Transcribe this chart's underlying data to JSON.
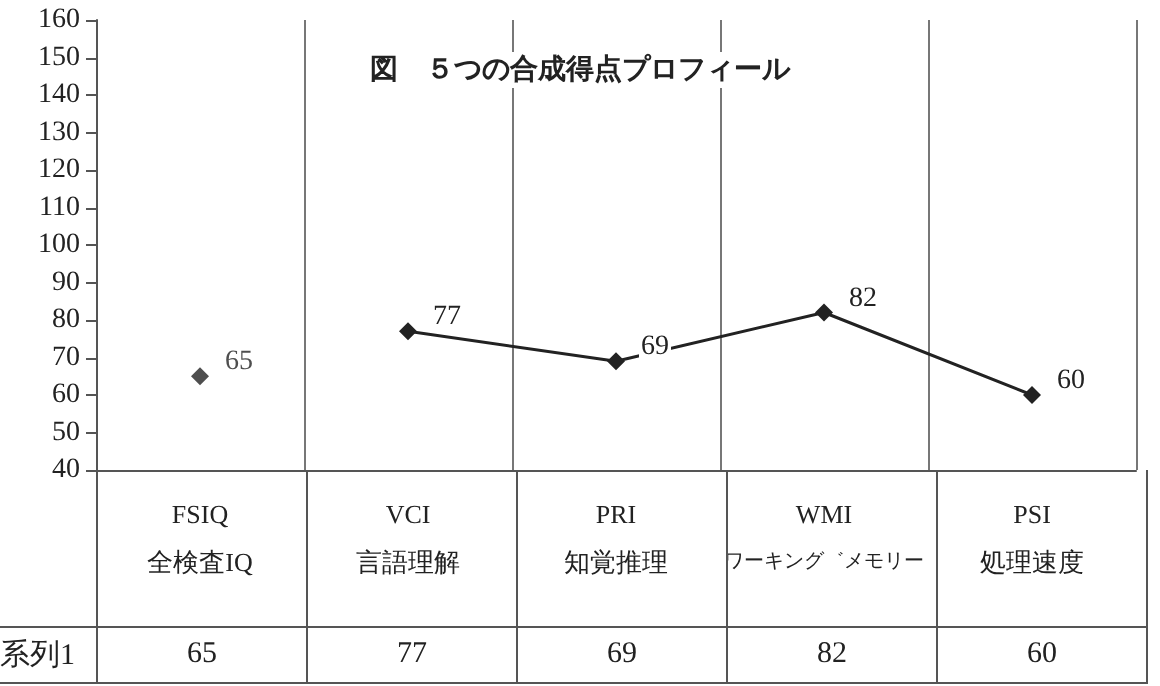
{
  "chart_data": {
    "type": "line",
    "title": "図　５つの合成得点プロフィール",
    "categories": [
      "FSIQ\n全検査IQ",
      "VCI\n言語理解",
      "PRI\n知覚推理",
      "WMI\nワーキング゛メモリー",
      "PSI\n処理速度"
    ],
    "series": [
      {
        "type": "scatter",
        "color": "#222222",
        "values": [
          65,
          null,
          null,
          null,
          null
        ],
        "value_labels": [
          "65",
          null,
          null,
          null,
          null
        ]
      },
      {
        "name": "系列1",
        "color": "#222222",
        "values": [
          null,
          77,
          69,
          82,
          60
        ],
        "value_labels": [
          null,
          "77",
          "69",
          "82",
          "60"
        ]
      }
    ],
    "ylim": [
      40,
      160
    ],
    "yticks": [
      40,
      50,
      60,
      70,
      80,
      90,
      100,
      110,
      120,
      130,
      140,
      150,
      160
    ],
    "annotations": [
      "65",
      "77",
      "69",
      "82",
      "60"
    ],
    "grid": "x",
    "marker": "diamond",
    "line_style": "solid"
  }
}
